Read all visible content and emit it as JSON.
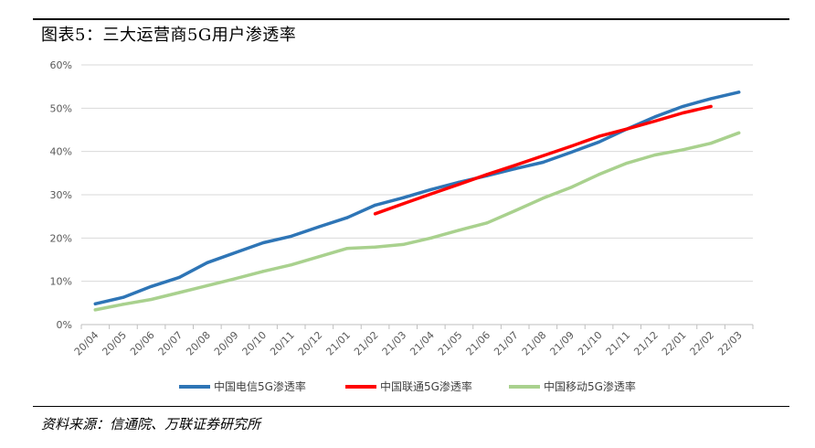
{
  "figure": {
    "title": "图表5：三大运营商5G用户渗透率",
    "source": "资料来源：信通院、万联证券研究所"
  },
  "chart_data": {
    "type": "line",
    "title": "",
    "xlabel": "",
    "ylabel": "",
    "ylim": [
      0,
      60
    ],
    "y_ticks": [
      "0%",
      "10%",
      "20%",
      "30%",
      "40%",
      "50%",
      "60%"
    ],
    "grid": true,
    "legend_position": "bottom",
    "categories": [
      "20/04",
      "20/05",
      "20/06",
      "20/07",
      "20/08",
      "20/09",
      "20/10",
      "20/11",
      "20/12",
      "21/01",
      "21/02",
      "21/03",
      "21/04",
      "21/05",
      "21/06",
      "21/07",
      "21/08",
      "21/09",
      "21/10",
      "21/11",
      "21/12",
      "22/01",
      "22/02",
      "22/03"
    ],
    "series": [
      {
        "name": "中国电信5G渗透率",
        "color": "#2E75B6",
        "values": [
          4.8,
          6.3,
          8.8,
          10.9,
          14.3,
          16.6,
          18.9,
          20.4,
          22.6,
          24.7,
          27.6,
          29.3,
          31.2,
          32.9,
          34.4,
          36.0,
          37.5,
          39.8,
          42.2,
          45.2,
          48.0,
          50.4,
          52.2,
          53.7
        ]
      },
      {
        "name": "中国联通5G渗透率",
        "color": "#FF0000",
        "values": [
          null,
          null,
          null,
          null,
          null,
          null,
          null,
          null,
          null,
          null,
          25.6,
          27.9,
          30.2,
          32.4,
          34.7,
          36.8,
          39.0,
          41.2,
          43.5,
          45.2,
          47.0,
          48.9,
          50.4,
          null
        ]
      },
      {
        "name": "中国移动5G渗透率",
        "color": "#A9D18E",
        "values": [
          3.4,
          4.7,
          5.8,
          7.4,
          9.0,
          10.6,
          12.3,
          13.8,
          15.7,
          17.6,
          17.9,
          18.5,
          20.0,
          21.8,
          23.5,
          26.3,
          29.2,
          31.7,
          34.7,
          37.3,
          39.2,
          40.4,
          41.9,
          44.3
        ]
      }
    ]
  }
}
